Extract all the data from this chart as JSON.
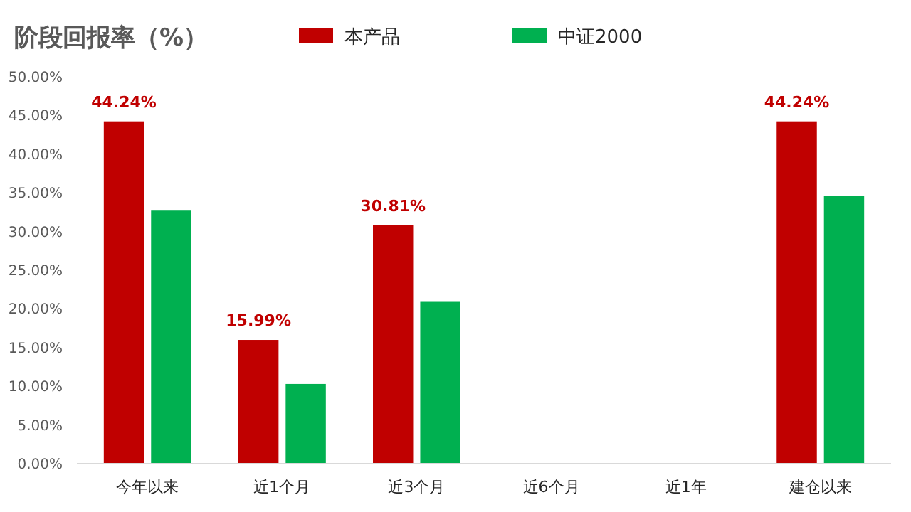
{
  "chart_data": {
    "type": "bar",
    "title": "阶段回报率（%）",
    "categories": [
      "今年以来",
      "近1个月",
      "近3个月",
      "近6个月",
      "近1年",
      "建仓以来"
    ],
    "series": [
      {
        "name": "本产品",
        "color": "#c00000",
        "values": [
          44.24,
          15.99,
          30.81,
          null,
          null,
          44.24
        ],
        "value_labels": [
          "44.24%",
          "15.99%",
          "30.81%",
          null,
          null,
          "44.24%"
        ]
      },
      {
        "name": "中证2000",
        "color": "#00b050",
        "values": [
          32.7,
          10.3,
          21.0,
          null,
          null,
          34.6
        ]
      }
    ],
    "ylim": [
      0,
      50
    ],
    "yticks": [
      {
        "value": 0,
        "label": "0.00%"
      },
      {
        "value": 5,
        "label": "5.00%"
      },
      {
        "value": 10,
        "label": "10.00%"
      },
      {
        "value": 15,
        "label": "15.00%"
      },
      {
        "value": 20,
        "label": "20.00%"
      },
      {
        "value": 25,
        "label": "25.00%"
      },
      {
        "value": 30,
        "label": "30.00%"
      },
      {
        "value": 35,
        "label": "35.00%"
      },
      {
        "value": 40,
        "label": "40.00%"
      },
      {
        "value": 45,
        "label": "45.00%"
      },
      {
        "value": 50,
        "label": "50.00%"
      }
    ],
    "legend": "top",
    "grid": false
  }
}
